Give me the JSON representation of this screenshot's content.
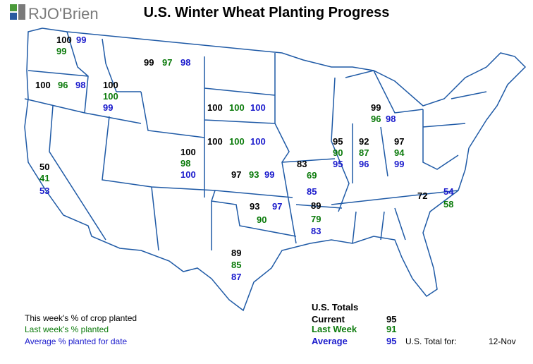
{
  "logo": "RJO'Brien",
  "title": "U.S. Winter Wheat Planting Progress",
  "states": [
    {
      "current": 100,
      "last_week": 99,
      "average": 99
    },
    {
      "current": 100,
      "last_week": 96,
      "average": 98
    },
    {
      "current": 100,
      "last_week": 100,
      "average": 99
    },
    {
      "current": 99,
      "last_week": 97,
      "average": 98
    },
    {
      "current": 100,
      "last_week": 100,
      "average": 100
    },
    {
      "current": 100,
      "last_week": 100,
      "average": 100
    },
    {
      "current": 100,
      "last_week": 98,
      "average": 100
    },
    {
      "current": 97,
      "last_week": 93,
      "average": 99
    },
    {
      "current": 50,
      "last_week": 41,
      "average": 53
    },
    {
      "current": 93,
      "last_week": 90,
      "average": 97
    },
    {
      "current": 89,
      "last_week": 85,
      "average": 87
    },
    {
      "current": 83,
      "last_week": 69,
      "average": 85
    },
    {
      "current": 89,
      "last_week": 79,
      "average": 83
    },
    {
      "current": 95,
      "last_week": 90,
      "average": 95
    },
    {
      "current": 92,
      "last_week": 87,
      "average": 96
    },
    {
      "current": 97,
      "last_week": 94,
      "average": 99
    },
    {
      "current": 99,
      "last_week": 96,
      "average": 98
    },
    {
      "current": 72,
      "last_week": 58,
      "average": 54
    }
  ],
  "legend": {
    "current": "This week's % of crop planted",
    "last_week": "Last week's % planted",
    "average": "Average % planted for date"
  },
  "totals": {
    "title": "U.S. Totals",
    "rows": [
      {
        "label": "Current",
        "value": 95
      },
      {
        "label": "Last Week",
        "value": 91
      },
      {
        "label": "Average",
        "value": 95
      }
    ]
  },
  "total_for": "U.S. Total for:",
  "date": "12-Nov"
}
